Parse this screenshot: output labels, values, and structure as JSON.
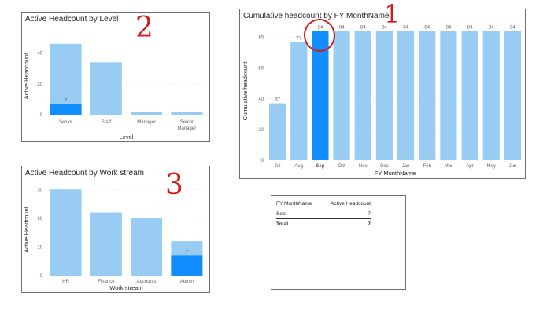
{
  "colors": {
    "bar": "#99ccf3",
    "highlight": "#118dff",
    "annotation": "#d01c1c"
  },
  "annotations": {
    "one": "1",
    "two": "2",
    "three": "3"
  },
  "chart_data": [
    {
      "id": "level",
      "type": "bar",
      "title": "Active Headcount by Level",
      "xlabel": "Level",
      "ylabel": "Active Headcount",
      "ylim": [
        0,
        50
      ],
      "yticks": [
        0,
        20,
        40
      ],
      "categories": [
        "Senior",
        "Staff",
        "Manager",
        "Senior Manager"
      ],
      "series": [
        {
          "values": [
            46,
            34,
            2,
            2
          ]
        },
        {
          "values": [
            7,
            0,
            0,
            0
          ]
        }
      ],
      "data_labels": [
        "7",
        "",
        "",
        ""
      ],
      "grid": true
    },
    {
      "id": "cumulative",
      "type": "bar",
      "title": "Cumulative headcount by FY MonthName",
      "xlabel": "FY MonthName",
      "ylabel": "Cumulative headcount",
      "ylim": [
        0,
        90
      ],
      "yticks": [
        0,
        20,
        40,
        60,
        80
      ],
      "categories": [
        "Jul",
        "Aug",
        "Sep",
        "Oct",
        "Nov",
        "Dec",
        "Jan",
        "Feb",
        "Mar",
        "Apr",
        "May",
        "Jun"
      ],
      "values": [
        37,
        77,
        84,
        84,
        84,
        84,
        84,
        84,
        84,
        84,
        84,
        84
      ],
      "data_labels": [
        "37",
        "77",
        "84",
        "84",
        "84",
        "84",
        "84",
        "84",
        "84",
        "84",
        "84",
        "84"
      ],
      "highlight": "Sep",
      "grid": true
    },
    {
      "id": "workstream",
      "type": "bar",
      "title": "Active Headcount by Work stream",
      "xlabel": "Work stream",
      "ylabel": "Active Headcount",
      "ylim": [
        0,
        32
      ],
      "yticks": [
        0,
        10,
        20,
        30
      ],
      "categories": [
        "HR",
        "Finance",
        "Accounts",
        "Admin"
      ],
      "series": [
        {
          "values": [
            30,
            22,
            20,
            12
          ]
        },
        {
          "values": [
            0,
            0,
            0,
            7
          ]
        }
      ],
      "data_labels": [
        "",
        "",
        "",
        "7"
      ],
      "grid": true
    }
  ],
  "table": {
    "headers": [
      "FY MonthName",
      "Active Headcount"
    ],
    "rows": [
      {
        "month": "Sep",
        "value": "7"
      }
    ],
    "total": {
      "label": "Total",
      "value": "7"
    }
  }
}
